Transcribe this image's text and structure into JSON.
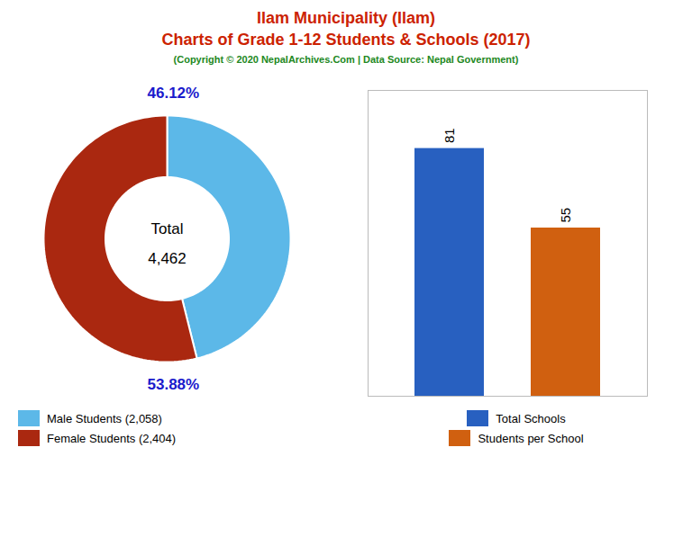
{
  "chart_data": [
    {
      "type": "donut",
      "title": "Ilam Municipality (Ilam)\nCharts of Grade 1-12 Students & Schools (2017)",
      "subtitle": "(Copyright © 2020 NepalArchives.Com | Data Source: Nepal Government)",
      "categories": [
        "Male Students (2,058)",
        "Female Students (2,404)"
      ],
      "values": [
        46.12,
        53.88
      ],
      "value_labels": [
        "46.12%",
        "53.88%"
      ],
      "colors": [
        "#5cb8e8",
        "#aa2810"
      ],
      "annotations": [
        "Total",
        "4,462"
      ],
      "data_labels": true,
      "legend": "lower left"
    },
    {
      "type": "bar",
      "categories": [
        "Total Schools",
        "Students per School"
      ],
      "values": [
        81,
        55
      ],
      "colors": [
        "#2860c0",
        "#d06010"
      ],
      "ylim": [
        0,
        100
      ],
      "tick_labels": false,
      "data_labels": true,
      "legend": "lower center"
    }
  ]
}
